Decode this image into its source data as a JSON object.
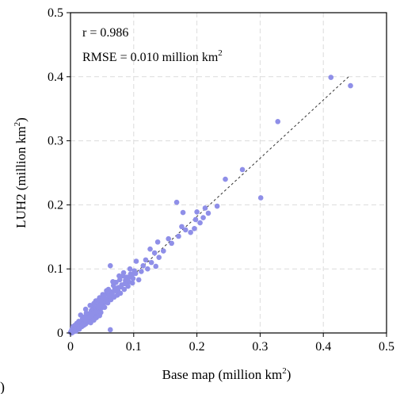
{
  "chart_data": {
    "type": "scatter",
    "xlabel": "Base map (million km",
    "xlabel_sup": "2",
    "xlabel_end": ")",
    "ylabel": "LUH2 (million km",
    "ylabel_sup": "2",
    "ylabel_end": ")",
    "xlim": [
      0,
      0.5
    ],
    "ylim": [
      0,
      0.5
    ],
    "xticks": [
      "0",
      "0.1",
      "0.2",
      "0.3",
      "0.4",
      "0.5"
    ],
    "yticks": [
      "0",
      "0.1",
      "0.2",
      "0.3",
      "0.4",
      "0.5"
    ],
    "grid": true,
    "annotations": {
      "r": "r = 0.986",
      "rmse": "RMSE = 0.010 million km",
      "rmse_sup": "2"
    },
    "panel_label": ")",
    "point_color": "#8f8fe8",
    "fit_line": {
      "x": [
        0,
        0.44
      ],
      "y": [
        0,
        0.4
      ]
    },
    "points": [
      {
        "x": 0.412,
        "y": 0.399
      },
      {
        "x": 0.443,
        "y": 0.386
      },
      {
        "x": 0.328,
        "y": 0.33
      },
      {
        "x": 0.272,
        "y": 0.255
      },
      {
        "x": 0.301,
        "y": 0.211
      },
      {
        "x": 0.245,
        "y": 0.24
      },
      {
        "x": 0.168,
        "y": 0.204
      },
      {
        "x": 0.232,
        "y": 0.198
      },
      {
        "x": 0.213,
        "y": 0.195
      },
      {
        "x": 0.218,
        "y": 0.187
      },
      {
        "x": 0.2,
        "y": 0.189
      },
      {
        "x": 0.178,
        "y": 0.188
      },
      {
        "x": 0.198,
        "y": 0.177
      },
      {
        "x": 0.205,
        "y": 0.172
      },
      {
        "x": 0.176,
        "y": 0.166
      },
      {
        "x": 0.171,
        "y": 0.151
      },
      {
        "x": 0.182,
        "y": 0.161
      },
      {
        "x": 0.19,
        "y": 0.157
      },
      {
        "x": 0.155,
        "y": 0.147
      },
      {
        "x": 0.138,
        "y": 0.142
      },
      {
        "x": 0.147,
        "y": 0.128
      },
      {
        "x": 0.133,
        "y": 0.125
      },
      {
        "x": 0.14,
        "y": 0.118
      },
      {
        "x": 0.126,
        "y": 0.131
      },
      {
        "x": 0.119,
        "y": 0.114
      },
      {
        "x": 0.112,
        "y": 0.096
      },
      {
        "x": 0.104,
        "y": 0.112
      },
      {
        "x": 0.101,
        "y": 0.097
      },
      {
        "x": 0.108,
        "y": 0.083
      },
      {
        "x": 0.099,
        "y": 0.085
      },
      {
        "x": 0.095,
        "y": 0.092
      },
      {
        "x": 0.092,
        "y": 0.08
      },
      {
        "x": 0.089,
        "y": 0.087
      },
      {
        "x": 0.086,
        "y": 0.077
      },
      {
        "x": 0.083,
        "y": 0.089
      },
      {
        "x": 0.08,
        "y": 0.072
      },
      {
        "x": 0.078,
        "y": 0.083
      },
      {
        "x": 0.075,
        "y": 0.066
      },
      {
        "x": 0.072,
        "y": 0.079
      },
      {
        "x": 0.07,
        "y": 0.07
      },
      {
        "x": 0.068,
        "y": 0.074
      },
      {
        "x": 0.065,
        "y": 0.064
      },
      {
        "x": 0.063,
        "y": 0.105
      },
      {
        "x": 0.062,
        "y": 0.058
      },
      {
        "x": 0.06,
        "y": 0.068
      },
      {
        "x": 0.058,
        "y": 0.054
      },
      {
        "x": 0.057,
        "y": 0.062
      },
      {
        "x": 0.055,
        "y": 0.049
      },
      {
        "x": 0.053,
        "y": 0.058
      },
      {
        "x": 0.052,
        "y": 0.045
      },
      {
        "x": 0.05,
        "y": 0.052
      },
      {
        "x": 0.049,
        "y": 0.039
      },
      {
        "x": 0.047,
        "y": 0.047
      },
      {
        "x": 0.046,
        "y": 0.055
      },
      {
        "x": 0.045,
        "y": 0.035
      },
      {
        "x": 0.043,
        "y": 0.043
      },
      {
        "x": 0.042,
        "y": 0.03
      },
      {
        "x": 0.04,
        "y": 0.05
      },
      {
        "x": 0.039,
        "y": 0.037
      },
      {
        "x": 0.038,
        "y": 0.027
      },
      {
        "x": 0.036,
        "y": 0.04
      },
      {
        "x": 0.035,
        "y": 0.032
      },
      {
        "x": 0.034,
        "y": 0.023
      },
      {
        "x": 0.033,
        "y": 0.035
      },
      {
        "x": 0.031,
        "y": 0.028
      },
      {
        "x": 0.03,
        "y": 0.02
      },
      {
        "x": 0.029,
        "y": 0.03
      },
      {
        "x": 0.028,
        "y": 0.025
      },
      {
        "x": 0.027,
        "y": 0.017
      },
      {
        "x": 0.026,
        "y": 0.022
      },
      {
        "x": 0.025,
        "y": 0.031
      },
      {
        "x": 0.024,
        "y": 0.014
      },
      {
        "x": 0.023,
        "y": 0.019
      },
      {
        "x": 0.022,
        "y": 0.025
      },
      {
        "x": 0.021,
        "y": 0.012
      },
      {
        "x": 0.02,
        "y": 0.017
      },
      {
        "x": 0.019,
        "y": 0.022
      },
      {
        "x": 0.018,
        "y": 0.01
      },
      {
        "x": 0.017,
        "y": 0.015
      },
      {
        "x": 0.016,
        "y": 0.028
      },
      {
        "x": 0.015,
        "y": 0.009
      },
      {
        "x": 0.014,
        "y": 0.013
      },
      {
        "x": 0.013,
        "y": 0.018
      },
      {
        "x": 0.012,
        "y": 0.007
      },
      {
        "x": 0.011,
        "y": 0.011
      },
      {
        "x": 0.01,
        "y": 0.015
      },
      {
        "x": 0.009,
        "y": 0.005
      },
      {
        "x": 0.008,
        "y": 0.009
      },
      {
        "x": 0.007,
        "y": 0.012
      },
      {
        "x": 0.006,
        "y": 0.004
      },
      {
        "x": 0.005,
        "y": 0.007
      },
      {
        "x": 0.004,
        "y": 0.01
      },
      {
        "x": 0.003,
        "y": 0.003
      },
      {
        "x": 0.002,
        "y": 0.005
      },
      {
        "x": 0.001,
        "y": 0.002
      },
      {
        "x": 0.0,
        "y": 0.001
      },
      {
        "x": 0.002,
        "y": 0.0
      },
      {
        "x": 0.005,
        "y": 0.002
      },
      {
        "x": 0.009,
        "y": 0.003
      },
      {
        "x": 0.014,
        "y": 0.006
      },
      {
        "x": 0.019,
        "y": 0.013
      },
      {
        "x": 0.024,
        "y": 0.02
      },
      {
        "x": 0.029,
        "y": 0.024
      },
      {
        "x": 0.034,
        "y": 0.03
      },
      {
        "x": 0.039,
        "y": 0.033
      },
      {
        "x": 0.044,
        "y": 0.04
      },
      {
        "x": 0.048,
        "y": 0.044
      },
      {
        "x": 0.052,
        "y": 0.05
      },
      {
        "x": 0.056,
        "y": 0.052
      },
      {
        "x": 0.061,
        "y": 0.06
      },
      {
        "x": 0.066,
        "y": 0.061
      },
      {
        "x": 0.071,
        "y": 0.066
      },
      {
        "x": 0.076,
        "y": 0.071
      },
      {
        "x": 0.081,
        "y": 0.075
      },
      {
        "x": 0.087,
        "y": 0.082
      },
      {
        "x": 0.093,
        "y": 0.087
      },
      {
        "x": 0.097,
        "y": 0.09
      },
      {
        "x": 0.103,
        "y": 0.093
      },
      {
        "x": 0.024,
        "y": 0.037
      },
      {
        "x": 0.031,
        "y": 0.043
      },
      {
        "x": 0.037,
        "y": 0.046
      },
      {
        "x": 0.044,
        "y": 0.051
      },
      {
        "x": 0.051,
        "y": 0.06
      },
      {
        "x": 0.057,
        "y": 0.066
      },
      {
        "x": 0.067,
        "y": 0.08
      },
      {
        "x": 0.077,
        "y": 0.089
      },
      {
        "x": 0.084,
        "y": 0.094
      },
      {
        "x": 0.094,
        "y": 0.1
      },
      {
        "x": 0.048,
        "y": 0.032
      },
      {
        "x": 0.054,
        "y": 0.04
      },
      {
        "x": 0.059,
        "y": 0.047
      },
      {
        "x": 0.064,
        "y": 0.052
      },
      {
        "x": 0.069,
        "y": 0.056
      },
      {
        "x": 0.074,
        "y": 0.059
      },
      {
        "x": 0.079,
        "y": 0.062
      },
      {
        "x": 0.085,
        "y": 0.068
      },
      {
        "x": 0.091,
        "y": 0.073
      },
      {
        "x": 0.098,
        "y": 0.078
      },
      {
        "x": 0.032,
        "y": 0.016
      },
      {
        "x": 0.037,
        "y": 0.02
      },
      {
        "x": 0.041,
        "y": 0.024
      },
      {
        "x": 0.046,
        "y": 0.027
      },
      {
        "x": 0.063,
        "y": 0.005
      },
      {
        "x": 0.122,
        "y": 0.1
      },
      {
        "x": 0.115,
        "y": 0.105
      },
      {
        "x": 0.128,
        "y": 0.11
      },
      {
        "x": 0.135,
        "y": 0.104
      },
      {
        "x": 0.16,
        "y": 0.14
      },
      {
        "x": 0.196,
        "y": 0.163
      },
      {
        "x": 0.21,
        "y": 0.18
      }
    ]
  }
}
